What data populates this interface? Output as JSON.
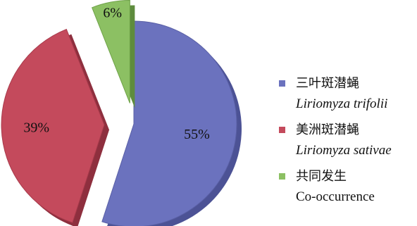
{
  "chart_data": {
    "type": "pie",
    "exploded": true,
    "title": "",
    "legend_position": "right",
    "slices": [
      {
        "label_zh": "三叶斑潜蝇",
        "label_en": "Liriomyza trifolii",
        "label_en_italic": true,
        "value": 55,
        "value_label": "55%",
        "color": "#6b72be",
        "edge_color": "#5a60a6",
        "side_color": "#4c5295"
      },
      {
        "label_zh": "美洲斑潜蝇",
        "label_en": "Liriomyza sativae",
        "label_en_italic": true,
        "value": 39,
        "value_label": "39%",
        "color": "#c44a5c",
        "edge_color": "#a83a4b",
        "side_color": "#8e2f3e"
      },
      {
        "label_zh": "共同发生",
        "label_en": "Co-occurrence",
        "label_en_italic": false,
        "value": 6,
        "value_label": "6%",
        "color": "#8cc063",
        "edge_color": "#6ea248",
        "side_color": "#5e8c3d"
      }
    ]
  }
}
